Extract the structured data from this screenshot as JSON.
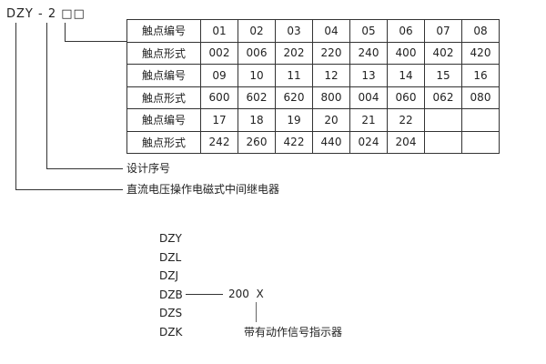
{
  "model_code": "DZY - 2 □□",
  "table": {
    "rows": [
      {
        "label": "触点编号",
        "values": [
          "01",
          "02",
          "03",
          "04",
          "05",
          "06",
          "07",
          "08"
        ]
      },
      {
        "label": "触点形式",
        "values": [
          "002",
          "006",
          "202",
          "220",
          "240",
          "400",
          "402",
          "420"
        ]
      },
      {
        "label": "触点编号",
        "values": [
          "09",
          "10",
          "11",
          "12",
          "13",
          "14",
          "15",
          "16"
        ]
      },
      {
        "label": "触点形式",
        "values": [
          "600",
          "602",
          "620",
          "800",
          "004",
          "060",
          "062",
          "080"
        ]
      },
      {
        "label": "触点编号",
        "values": [
          "17",
          "18",
          "19",
          "20",
          "21",
          "22",
          "",
          ""
        ]
      },
      {
        "label": "触点形式",
        "values": [
          "242",
          "260",
          "422",
          "440",
          "024",
          "204",
          "",
          ""
        ]
      }
    ]
  },
  "design_serial_label": "设计序号",
  "relay_type_label": "直流电压操作电磁式中间继电器",
  "series": [
    "DZY",
    "DZL",
    "DZJ",
    "DZB",
    "DZS",
    "DZK"
  ],
  "suffix": "200  X",
  "indicator_label": "带有动作信号指示器"
}
